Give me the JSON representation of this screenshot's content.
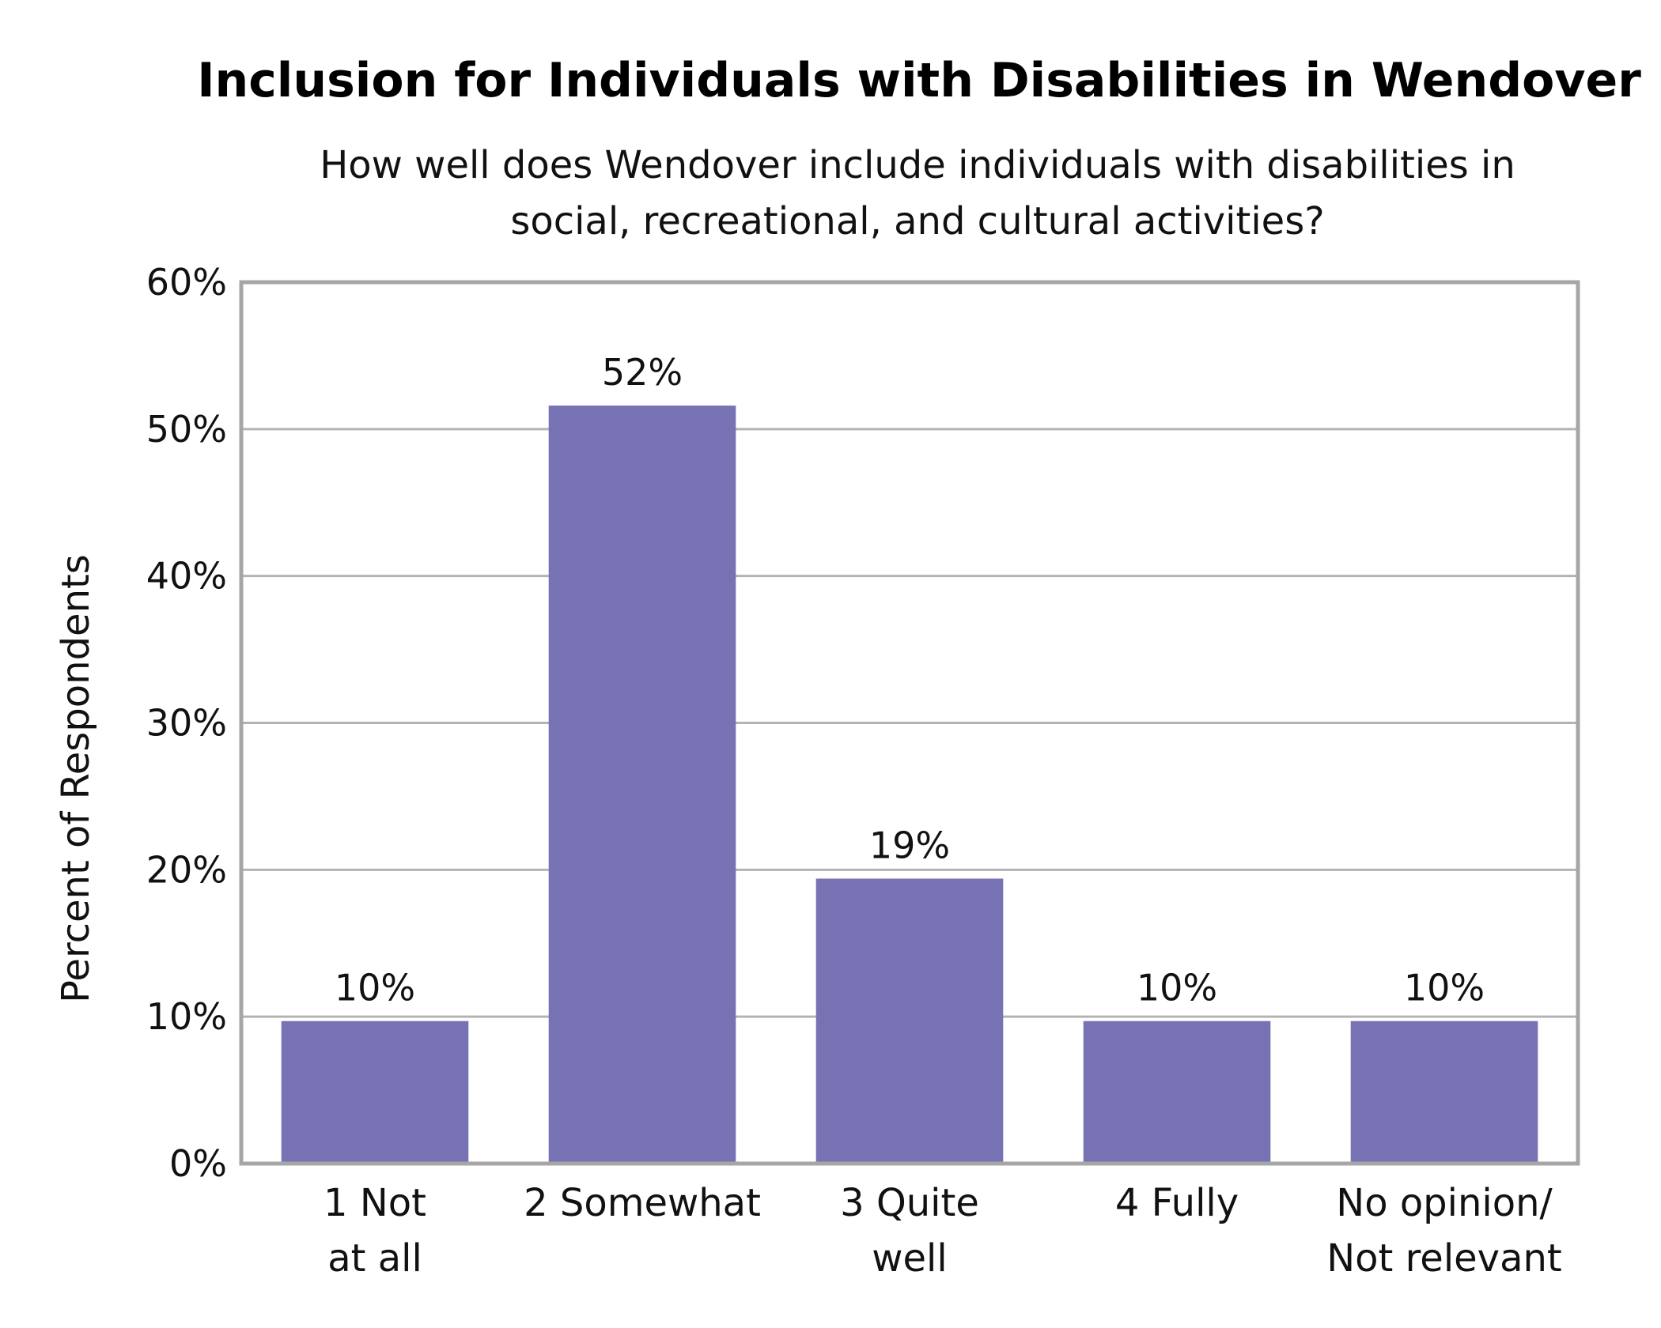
{
  "chart_data": {
    "type": "bar",
    "title": "Inclusion for Individuals with Disabilities in Wendover",
    "subtitle": [
      "How well does Wendover include individuals with disabilities in",
      "social, recreational, and cultural activities?"
    ],
    "ylabel": "Percent of Respondents",
    "xlabel": "",
    "categories": [
      [
        "1 Not",
        "at all"
      ],
      [
        "2 Somewhat"
      ],
      [
        "3 Quite",
        "well"
      ],
      [
        "4 Fully"
      ],
      [
        "No opinion/",
        "Not relevant"
      ]
    ],
    "values": [
      9.7,
      51.6,
      19.4,
      9.7,
      9.7
    ],
    "data_labels": [
      "10%",
      "52%",
      "19%",
      "10%",
      "10%"
    ],
    "ylim": [
      0,
      60
    ],
    "yticks": [
      0,
      10,
      20,
      30,
      40,
      50,
      60
    ],
    "ytick_labels": [
      "0%",
      "10%",
      "20%",
      "30%",
      "40%",
      "50%",
      "60%"
    ],
    "grid": true,
    "colors": {
      "bar": "#7672b3",
      "grid": "#b3b3b3",
      "frame": "#a6a6a6"
    }
  }
}
